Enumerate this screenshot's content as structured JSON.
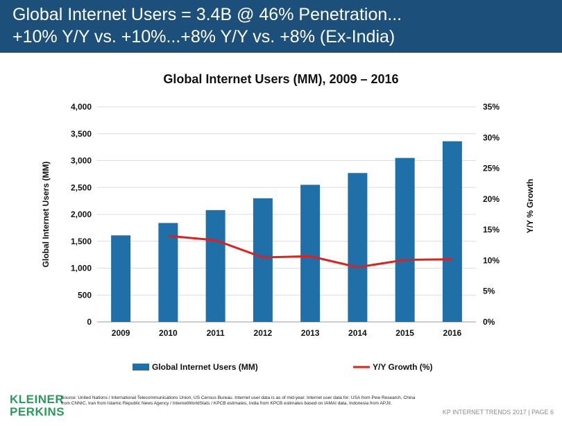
{
  "header": {
    "line1": "Global Internet Users = 3.4B @ 46% Penetration...",
    "line2": "+10% Y/Y vs. +10%...+8% Y/Y vs. +8% (Ex-India)"
  },
  "chart_data": {
    "type": "bar",
    "title": "Global Internet Users (MM), 2009 – 2016",
    "categories": [
      "2009",
      "2010",
      "2011",
      "2012",
      "2013",
      "2014",
      "2015",
      "2016"
    ],
    "ylabel": "Global Internet Users (MM)",
    "y2label": "Y/Y % Growth",
    "ylim": [
      0,
      4000
    ],
    "y2lim": [
      0,
      0.35
    ],
    "yticks": [
      "0",
      "500",
      "1,000",
      "1,500",
      "2,000",
      "2,500",
      "3,000",
      "3,500",
      "4,000"
    ],
    "y2ticks": [
      "0%",
      "5%",
      "10%",
      "15%",
      "20%",
      "25%",
      "30%",
      "35%"
    ],
    "grid": true,
    "legend_position": "bottom",
    "series": [
      {
        "name": "Global Internet Users (MM)",
        "type": "bar",
        "axis": "left",
        "color": "#1f6fa8",
        "values": [
          1610,
          1840,
          2080,
          2300,
          2550,
          2770,
          3050,
          3360
        ]
      },
      {
        "name": "Y/Y Growth (%)",
        "type": "line",
        "axis": "right",
        "color": "#e0201b",
        "values": [
          null,
          0.14,
          0.133,
          0.105,
          0.107,
          0.089,
          0.101,
          0.102
        ]
      }
    ]
  },
  "footer": {
    "logo_line1": "KLEINER",
    "logo_line2": "PERKINS",
    "logo_color": "#2a9a5a",
    "source": "Source: United Nations / International Telecommunications Union, US Census Bureau. Internet user data is as of mid-year. Internet user data for: USA from Pew Research, China from CNNIC, Iran from Islamic Republic News Agency / InternetWorldStats / KPCB estimates, India from KPCB estimates based on IAMAI data, Indonesia from APJII.",
    "page_label": "KP INTERNET TRENDS 2017 | PAGE 6"
  }
}
